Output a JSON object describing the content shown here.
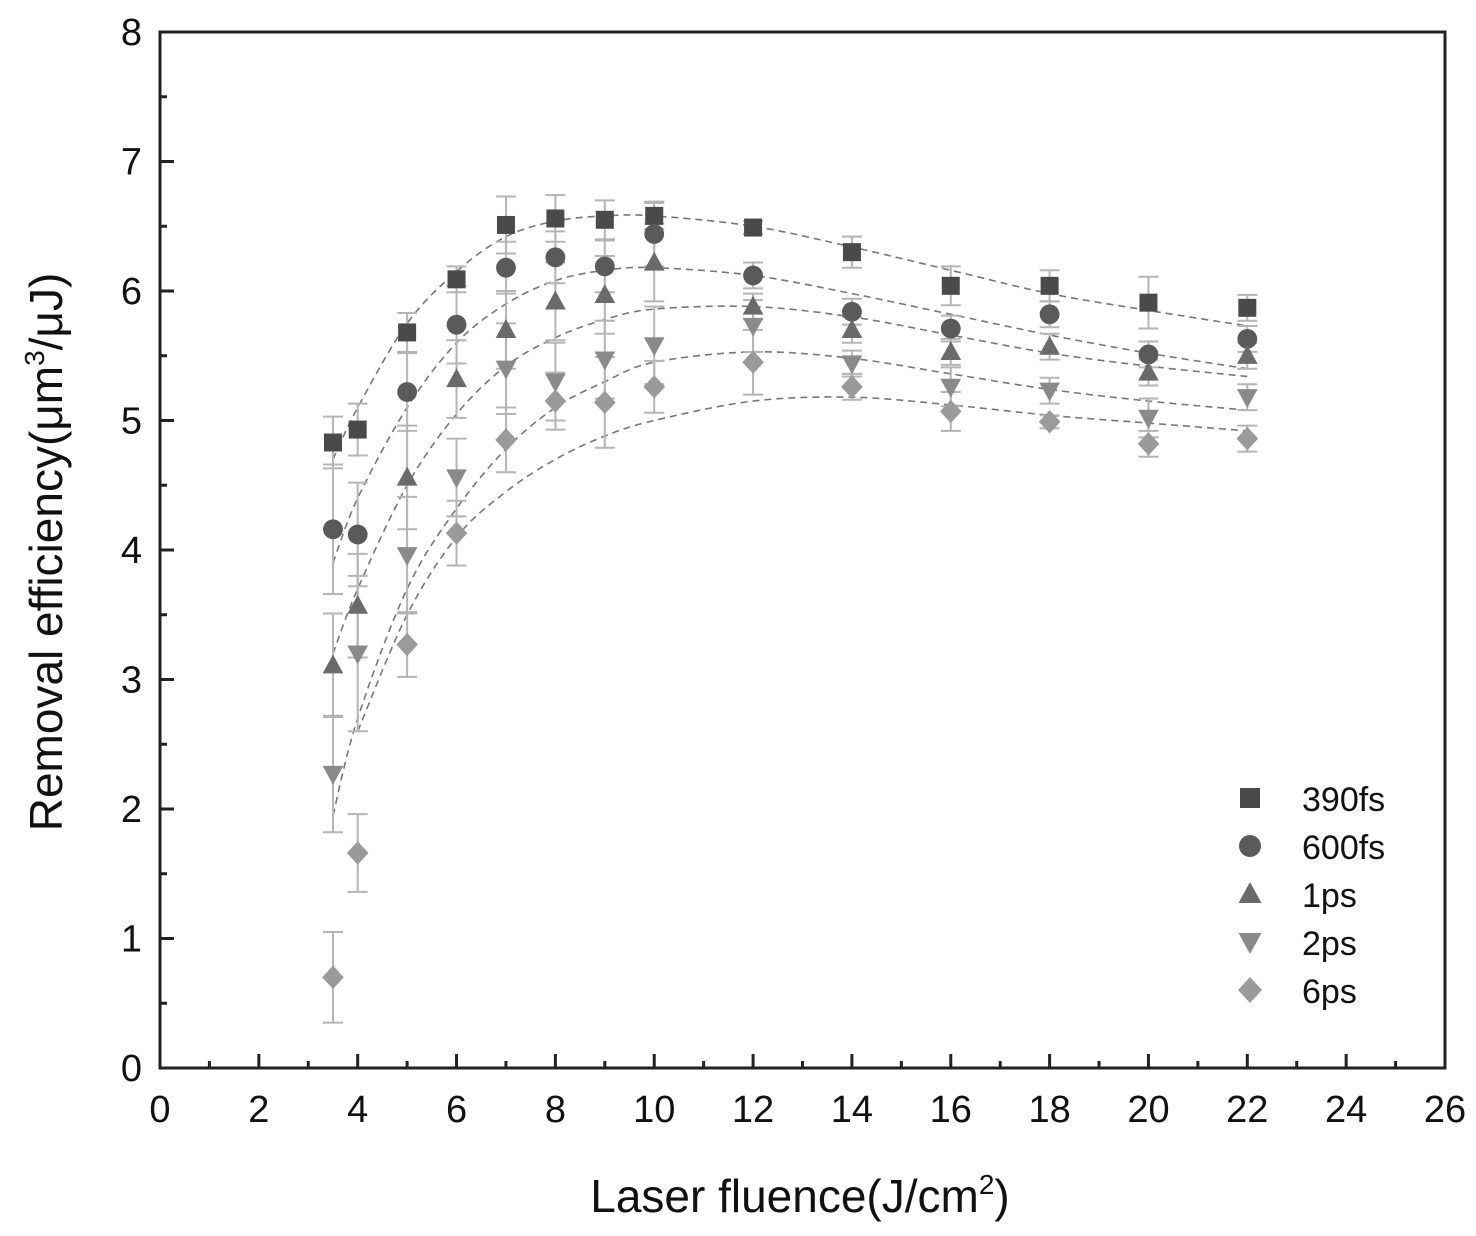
{
  "chart_data": {
    "type": "scatter",
    "xlabel": "Laser fluence(J/cm",
    "xlabel_sup": "2",
    "xlabel_end": ")",
    "ylabel": "Removal efficiency(μm",
    "ylabel_sup": "3",
    "ylabel_end": "/μJ)",
    "xlim": [
      0,
      26
    ],
    "ylim": [
      0,
      8
    ],
    "xticks": [
      "0",
      "2",
      "4",
      "6",
      "8",
      "10",
      "12",
      "14",
      "16",
      "18",
      "20",
      "22",
      "24",
      "26"
    ],
    "yticks": [
      "0",
      "1",
      "2",
      "3",
      "4",
      "5",
      "6",
      "7",
      "8"
    ],
    "grid": false,
    "legend_position": "bottom-right",
    "series": [
      {
        "name": "390fs",
        "marker": "square",
        "color": "#4a4a4a",
        "x": [
          3.5,
          4,
          5,
          6,
          7,
          8,
          9,
          10,
          12,
          14,
          16,
          18,
          20,
          22
        ],
        "y": [
          4.83,
          4.93,
          5.68,
          6.09,
          6.51,
          6.56,
          6.55,
          6.58,
          6.49,
          6.3,
          6.04,
          6.04,
          5.91,
          5.87
        ],
        "err": [
          0.2,
          0.2,
          0.15,
          0.1,
          0.22,
          0.18,
          0.15,
          0.1,
          0.05,
          0.12,
          0.15,
          0.12,
          0.2,
          0.1
        ],
        "fit_x": [
          3.5,
          4,
          5,
          6,
          7,
          8,
          9,
          10,
          12,
          14,
          16,
          18,
          20,
          22
        ],
        "fit_y": [
          4.7,
          5.1,
          5.75,
          6.15,
          6.42,
          6.54,
          6.58,
          6.58,
          6.5,
          6.34,
          6.16,
          5.98,
          5.85,
          5.73
        ]
      },
      {
        "name": "600fs",
        "marker": "circle",
        "color": "#5a5a5a",
        "x": [
          3.5,
          4,
          5,
          6,
          7,
          8,
          9,
          10,
          12,
          14,
          16,
          18,
          20,
          22
        ],
        "y": [
          4.16,
          4.12,
          5.22,
          5.74,
          6.18,
          6.26,
          6.19,
          6.44,
          6.12,
          5.84,
          5.71,
          5.82,
          5.51,
          5.63
        ],
        "err": [
          0.5,
          0.4,
          0.3,
          0.3,
          0.2,
          0.2,
          0.2,
          0.25,
          0.1,
          0.1,
          0.1,
          0.1,
          0.1,
          0.1
        ],
        "fit_x": [
          3.5,
          4,
          5,
          6,
          7,
          8,
          9,
          10,
          12,
          14,
          16,
          18,
          20,
          22
        ],
        "fit_y": [
          3.9,
          4.4,
          5.1,
          5.6,
          5.9,
          6.08,
          6.16,
          6.18,
          6.12,
          5.98,
          5.82,
          5.66,
          5.52,
          5.4
        ]
      },
      {
        "name": "1ps",
        "marker": "triangle-up",
        "color": "#6a6a6a",
        "x": [
          3.5,
          4,
          5,
          6,
          7,
          8,
          9,
          10,
          12,
          14,
          16,
          18,
          20,
          22
        ],
        "y": [
          3.11,
          3.57,
          4.56,
          5.32,
          5.7,
          5.92,
          5.97,
          6.22,
          5.88,
          5.7,
          5.53,
          5.57,
          5.37,
          5.5
        ],
        "err": [
          0.4,
          0.4,
          0.4,
          0.3,
          0.3,
          0.3,
          0.3,
          0.3,
          0.1,
          0.1,
          0.1,
          0.1,
          0.1,
          0.1
        ],
        "fit_x": [
          3.5,
          4,
          5,
          6,
          7,
          8,
          9,
          10,
          12,
          14,
          16,
          18,
          20,
          22
        ],
        "fit_y": [
          3.2,
          3.7,
          4.5,
          5.05,
          5.42,
          5.64,
          5.78,
          5.86,
          5.88,
          5.8,
          5.66,
          5.52,
          5.42,
          5.34
        ]
      },
      {
        "name": "2ps",
        "marker": "triangle-down",
        "color": "#8a8a8a",
        "x": [
          3.5,
          4,
          5,
          6,
          7,
          8,
          9,
          10,
          12,
          14,
          16,
          18,
          20,
          22
        ],
        "y": [
          2.27,
          3.2,
          3.96,
          4.56,
          5.4,
          5.3,
          5.47,
          5.58,
          5.73,
          5.44,
          5.26,
          5.23,
          5.02,
          5.18
        ],
        "err": [
          0.45,
          0.6,
          0.45,
          0.3,
          0.35,
          0.3,
          0.3,
          0.3,
          0.2,
          0.1,
          0.15,
          0.1,
          0.15,
          0.1
        ],
        "fit_x": [
          3.5,
          4,
          5,
          6,
          7,
          8,
          9,
          10,
          12,
          14,
          16,
          18,
          20,
          22
        ],
        "fit_y": [
          1.95,
          2.7,
          3.7,
          4.32,
          4.78,
          5.1,
          5.3,
          5.45,
          5.53,
          5.48,
          5.36,
          5.24,
          5.15,
          5.08
        ]
      },
      {
        "name": "6ps",
        "marker": "diamond",
        "color": "#9a9a9a",
        "x": [
          3.5,
          4,
          5,
          6,
          7,
          8,
          9,
          10,
          12,
          14,
          16,
          18,
          20,
          22
        ],
        "y": [
          0.7,
          1.66,
          3.27,
          4.13,
          4.85,
          5.15,
          5.14,
          5.26,
          5.45,
          5.26,
          5.07,
          4.99,
          4.82,
          4.86
        ],
        "err": [
          0.35,
          0.3,
          0.25,
          0.25,
          0.25,
          0.22,
          0.35,
          0.2,
          0.25,
          0.1,
          0.15,
          0.05,
          0.1,
          0.1
        ],
        "fit_x": [
          4,
          5,
          6,
          7,
          8,
          9,
          10,
          12,
          14,
          16,
          18,
          20,
          22
        ],
        "fit_y": [
          2.6,
          3.5,
          4.1,
          4.45,
          4.7,
          4.88,
          5.0,
          5.15,
          5.18,
          5.12,
          5.04,
          4.98,
          4.92
        ]
      }
    ]
  }
}
